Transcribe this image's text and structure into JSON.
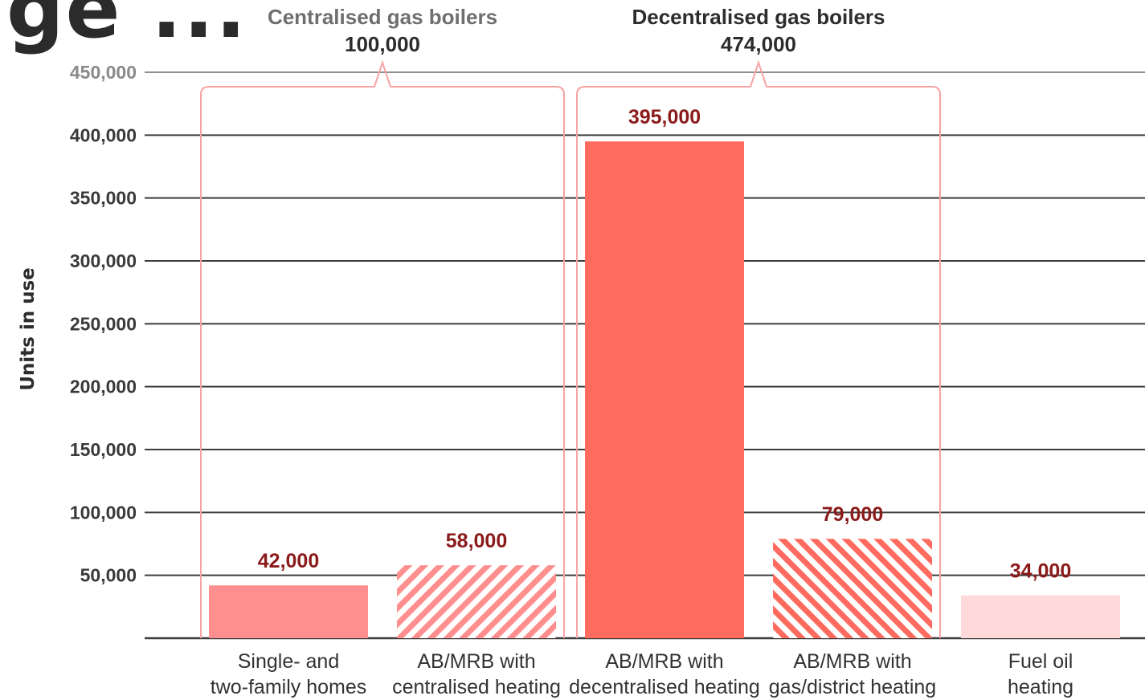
{
  "header": {
    "title_fragment": "ge ..."
  },
  "chart_data": {
    "type": "bar",
    "ylabel": "Units in use",
    "xlabel": "",
    "ylim": [
      0,
      450000
    ],
    "yticks": [
      50000,
      100000,
      150000,
      200000,
      250000,
      300000,
      350000,
      400000,
      450000
    ],
    "ytick_labels": [
      "50,000",
      "100,000",
      "150,000",
      "200,000",
      "250,000",
      "300,000",
      "350,000",
      "400,000",
      "450,000"
    ],
    "grid": true,
    "categories": [
      [
        "Single- and",
        "two-family homes"
      ],
      [
        "AB/MRB with",
        "centralised heating"
      ],
      [
        "AB/MRB with",
        "decentralised heating"
      ],
      [
        "AB/MRB with",
        "gas/district heating"
      ],
      [
        "Fuel oil",
        "heating"
      ]
    ],
    "values": [
      42000,
      58000,
      395000,
      79000,
      34000
    ],
    "value_labels": [
      "42,000",
      "58,000",
      "395,000",
      "79,000",
      "34,000"
    ],
    "bar_styles": [
      "solid",
      "hatched",
      "solid",
      "hatched",
      "solid"
    ],
    "bar_colors": [
      "#ff8f8f",
      "#ff8f8f",
      "#ff6b5e",
      "#ff6b5e",
      "#ffd9d9"
    ],
    "groups": [
      {
        "label": "Centralised gas boilers",
        "total": "100,000",
        "category_range": [
          0,
          1
        ]
      },
      {
        "label": "Decentralised gas boilers",
        "total": "474,000",
        "category_range": [
          2,
          3
        ]
      }
    ],
    "colors": {
      "bracket": "#f7a3a3",
      "value_text": "#8b1a1a",
      "grid": "#3c3c3c"
    }
  }
}
